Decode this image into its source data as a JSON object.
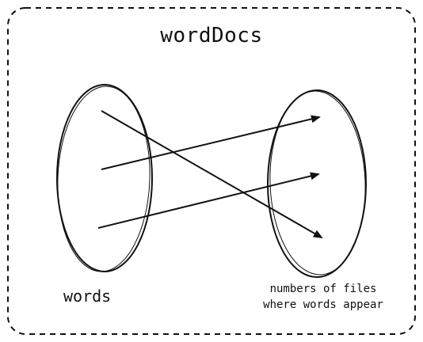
{
  "diagram": {
    "title": "wordDocs",
    "left_set_label": "words",
    "right_set_label_line1": "numbers of files",
    "right_set_label_line2": "where words appear"
  },
  "colors": {
    "stroke": "#111111",
    "background": "#ffffff"
  }
}
